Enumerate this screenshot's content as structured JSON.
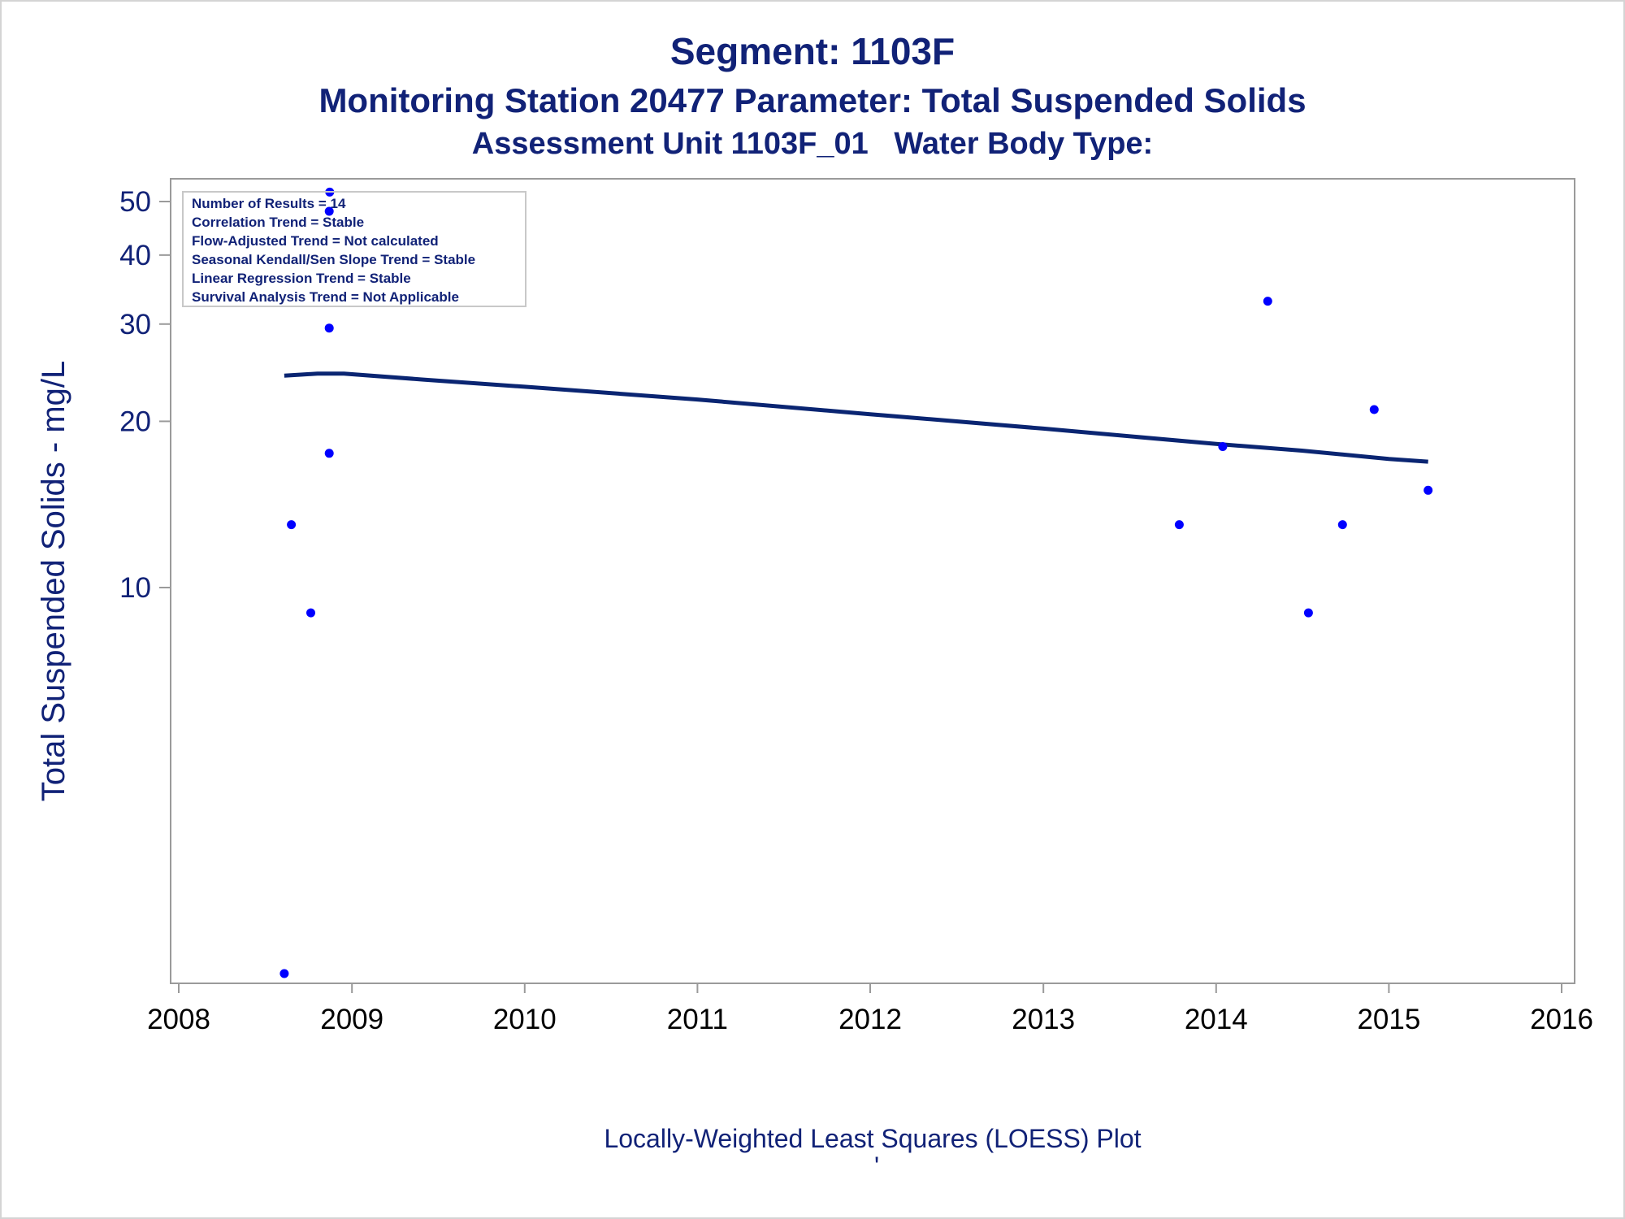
{
  "chart_data": {
    "type": "scatter",
    "title": "Segment: 1103F",
    "subtitle": "Monitoring Station 20477 Parameter: Total Suspended Solids",
    "subtitle2": "Assessment Unit 1103F_01   Water Body Type:",
    "xlabel": "",
    "ylabel": "Total Suspended Solids - mg/L",
    "footnote": "Locally-Weighted Least Squares (LOESS) Plot",
    "footnote_mark": "'",
    "yscale": "log",
    "xlim": [
      "2008-01-01",
      "2016-01-01"
    ],
    "ylim": [
      2,
      50
    ],
    "x_ticks": [
      "2008",
      "2009",
      "2010",
      "2011",
      "2012",
      "2013",
      "2014",
      "2015",
      "2016"
    ],
    "y_ticks": [
      {
        "value": 10,
        "label": "10"
      },
      {
        "value": 20,
        "label": "20"
      },
      {
        "value": 30,
        "label": "30"
      },
      {
        "value": 40,
        "label": "40"
      },
      {
        "value": 50,
        "label": "50"
      }
    ],
    "grid": false,
    "legend_position": "top-left",
    "legend_lines": [
      "Number of Results = 14",
      "Correlation Trend = Stable",
      "Flow-Adjusted Trend = Not calculated",
      "Seasonal Kendall/Sen Slope Trend = Stable",
      "Linear Regression Trend = Stable",
      "Survival Analysis Trend = Not Applicable"
    ],
    "colors": {
      "points": "#0000ff",
      "line": "#0a2572",
      "text": "#112277",
      "axis": "#9a9a9a"
    },
    "series": [
      {
        "type": "scatter",
        "points": [
          {
            "x": "2008-08-11",
            "y": 2
          },
          {
            "x": "2008-08-26",
            "y": 13
          },
          {
            "x": "2008-10-06",
            "y": 9
          },
          {
            "x": "2008-11-14",
            "y": 17.5
          },
          {
            "x": "2008-11-14",
            "y": 29.5
          },
          {
            "x": "2008-11-14",
            "y": 48
          },
          {
            "x": "2008-11-15",
            "y": 52
          },
          {
            "x": "2013-10-15",
            "y": 13
          },
          {
            "x": "2014-01-15",
            "y": 18
          },
          {
            "x": "2014-04-20",
            "y": 33
          },
          {
            "x": "2014-07-15",
            "y": 9
          },
          {
            "x": "2014-09-25",
            "y": 13
          },
          {
            "x": "2014-12-01",
            "y": 21
          },
          {
            "x": "2015-03-25",
            "y": 15
          }
        ]
      },
      {
        "type": "line",
        "points": [
          {
            "x": "2008-08-11",
            "y": 24.2
          },
          {
            "x": "2008-09-15",
            "y": 24.3
          },
          {
            "x": "2008-10-20",
            "y": 24.4
          },
          {
            "x": "2008-12-15",
            "y": 24.4
          },
          {
            "x": "2009-06-01",
            "y": 23.8
          },
          {
            "x": "2010-01-01",
            "y": 23.1
          },
          {
            "x": "2011-01-01",
            "y": 21.9
          },
          {
            "x": "2012-01-01",
            "y": 20.6
          },
          {
            "x": "2013-01-01",
            "y": 19.4
          },
          {
            "x": "2014-01-01",
            "y": 18.2
          },
          {
            "x": "2014-07-01",
            "y": 17.7
          },
          {
            "x": "2015-01-01",
            "y": 17.1
          },
          {
            "x": "2015-03-25",
            "y": 16.9
          }
        ]
      }
    ]
  }
}
